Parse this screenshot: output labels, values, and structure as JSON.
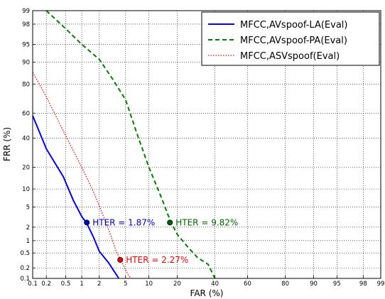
{
  "chart_data": {
    "type": "line",
    "title": "",
    "xlabel": "FAR (%)",
    "ylabel": "FRR (%)",
    "scale": "normal-deviate",
    "xlim": [
      0.1,
      99
    ],
    "ylim": [
      0.1,
      99
    ],
    "grid": true,
    "legend_position": "top-right",
    "x_ticks": [
      0.1,
      0.2,
      0.5,
      1,
      2,
      5,
      10,
      20,
      40,
      60,
      80,
      90,
      95,
      98,
      99
    ],
    "x_tick_labels": [
      "0.1",
      "0.2",
      "0.5",
      "1",
      "2",
      "5",
      "10",
      "20",
      "40",
      "60",
      "80",
      "90",
      "95",
      "98",
      "99"
    ],
    "y_ticks": [
      0.1,
      0.2,
      0.5,
      1,
      2,
      5,
      10,
      20,
      40,
      60,
      80,
      90,
      95,
      98,
      99
    ],
    "y_tick_labels": [
      "0.1",
      "0.2",
      "0.5",
      "1",
      "2",
      "5",
      "10",
      "20",
      "40",
      "60",
      "80",
      "90",
      "95",
      "98",
      "99"
    ],
    "series": [
      {
        "name": "MFCC,AVspoof-LA(Eval)",
        "color": "#0000ff",
        "style": "solid",
        "points": [
          [
            0.1,
            58
          ],
          [
            0.2,
            32
          ],
          [
            0.45,
            15
          ],
          [
            0.7,
            6.5
          ],
          [
            1.0,
            3.3
          ],
          [
            1.23,
            2.4
          ],
          [
            1.6,
            1.2
          ],
          [
            2.0,
            0.55
          ],
          [
            2.8,
            0.28
          ],
          [
            4.0,
            0.1
          ]
        ]
      },
      {
        "name": "MFCC,AVspoof-PA(Eval)",
        "color": "#008000",
        "style": "dashed",
        "points": [
          [
            0.2,
            99
          ],
          [
            0.5,
            97.5
          ],
          [
            1.0,
            95
          ],
          [
            2.0,
            91
          ],
          [
            3.2,
            83
          ],
          [
            5.0,
            70
          ],
          [
            7.0,
            45
          ],
          [
            10.0,
            20
          ],
          [
            14.0,
            7
          ],
          [
            16.0,
            3.8
          ],
          [
            17.5,
            2.5
          ],
          [
            20.0,
            1.4
          ],
          [
            25.0,
            0.7
          ],
          [
            30.0,
            0.38
          ],
          [
            36.0,
            0.25
          ],
          [
            40.0,
            0.1
          ]
        ]
      },
      {
        "name": "MFCC,ASVspoof(Eval)",
        "color": "#ff0000",
        "style": "dotted",
        "points": [
          [
            0.1,
            86
          ],
          [
            0.2,
            72
          ],
          [
            0.5,
            42
          ],
          [
            1.0,
            20
          ],
          [
            1.6,
            9
          ],
          [
            2.2,
            4
          ],
          [
            3.0,
            1.4
          ],
          [
            3.6,
            0.6
          ],
          [
            4.0,
            0.4
          ],
          [
            4.5,
            0.27
          ],
          [
            5.5,
            0.12
          ],
          [
            6.0,
            0.1
          ]
        ]
      }
    ],
    "annotations": [
      {
        "text": "HTER = 1.87%",
        "x": 1.23,
        "y": 2.5,
        "color": "#0000cc"
      },
      {
        "text": "HTER = 9.82%",
        "x": 17.0,
        "y": 2.5,
        "color": "#006400"
      },
      {
        "text": "HTER = 2.27%",
        "x": 4.2,
        "y": 0.33,
        "color": "#ff0000"
      }
    ]
  }
}
